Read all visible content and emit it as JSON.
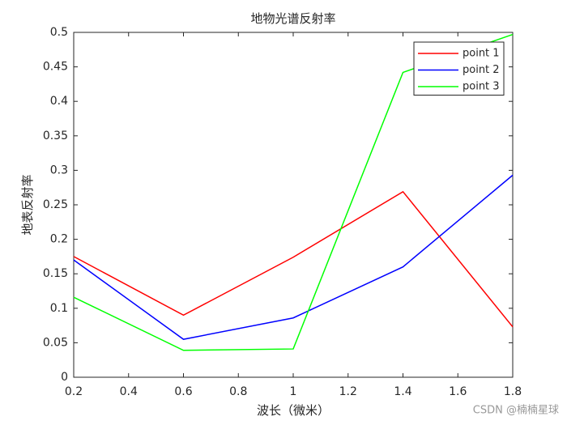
{
  "chart_data": {
    "type": "line",
    "title": "地物光谱反射率",
    "xlabel": "波长（微米）",
    "ylabel": "地表反射率",
    "x": [
      0.2,
      0.6,
      1.0,
      1.4,
      1.8
    ],
    "series": [
      {
        "name": "point 1",
        "color": "#ff0000",
        "values": [
          0.175,
          0.09,
          0.174,
          0.269,
          0.073
        ]
      },
      {
        "name": "point 2",
        "color": "#0000ff",
        "values": [
          0.17,
          0.055,
          0.086,
          0.16,
          0.293
        ]
      },
      {
        "name": "point 3",
        "color": "#00ff00",
        "values": [
          0.116,
          0.039,
          0.041,
          0.442,
          0.497
        ]
      }
    ],
    "xlim": [
      0.2,
      1.8
    ],
    "xticks": [
      0.2,
      0.4,
      0.6,
      0.8,
      1,
      1.2,
      1.4,
      1.6,
      1.8
    ],
    "ylim": [
      0,
      0.5
    ],
    "yticks": [
      0,
      0.05,
      0.1,
      0.15,
      0.2,
      0.25,
      0.3,
      0.35,
      0.4,
      0.45,
      0.5
    ],
    "grid": false,
    "legend": "northeast",
    "watermark": "CSDN @楠楠星球"
  }
}
